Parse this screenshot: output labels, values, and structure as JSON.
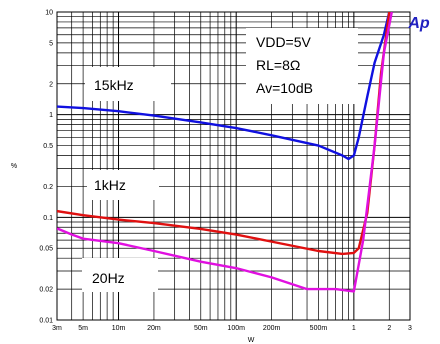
{
  "chart_data": {
    "type": "line",
    "title": "",
    "xlabel": "W",
    "ylabel": "%",
    "x_scale": "log",
    "y_scale": "log",
    "xlim": [
      0.003,
      3
    ],
    "ylim": [
      0.01,
      10
    ],
    "grid": true,
    "x_ticks": [
      {
        "value": 0.003,
        "label": "3m"
      },
      {
        "value": 0.005,
        "label": "5m"
      },
      {
        "value": 0.01,
        "label": "10m"
      },
      {
        "value": 0.02,
        "label": "20m"
      },
      {
        "value": 0.05,
        "label": "50m"
      },
      {
        "value": 0.1,
        "label": "100m"
      },
      {
        "value": 0.2,
        "label": "200m"
      },
      {
        "value": 0.5,
        "label": "500m"
      },
      {
        "value": 1,
        "label": "1"
      },
      {
        "value": 2,
        "label": "2"
      },
      {
        "value": 3,
        "label": "3"
      }
    ],
    "y_ticks": [
      {
        "value": 10,
        "label": "10"
      },
      {
        "value": 5,
        "label": "5"
      },
      {
        "value": 2,
        "label": "2"
      },
      {
        "value": 1,
        "label": "1"
      },
      {
        "value": 0.5,
        "label": "0.5"
      },
      {
        "value": 0.2,
        "label": "0.2"
      },
      {
        "value": 0.1,
        "label": "0.1"
      },
      {
        "value": 0.05,
        "label": "0.05"
      },
      {
        "value": 0.02,
        "label": "0.02"
      },
      {
        "value": 0.01,
        "label": "0.01"
      }
    ],
    "conditions": [
      "VDD=5V",
      "RL=8Ω",
      "Av=10dB"
    ],
    "logo": "Ap",
    "series": [
      {
        "name": "15kHz",
        "color": "#1010e0",
        "points": [
          [
            0.003,
            1.2
          ],
          [
            0.005,
            1.16
          ],
          [
            0.01,
            1.08
          ],
          [
            0.02,
            0.98
          ],
          [
            0.05,
            0.84
          ],
          [
            0.1,
            0.74
          ],
          [
            0.2,
            0.63
          ],
          [
            0.5,
            0.5
          ],
          [
            0.8,
            0.4
          ],
          [
            0.9,
            0.37
          ],
          [
            1.0,
            0.4
          ],
          [
            1.1,
            0.6
          ],
          [
            1.3,
            1.5
          ],
          [
            1.5,
            3.2
          ],
          [
            1.8,
            6.0
          ],
          [
            2.0,
            10
          ]
        ]
      },
      {
        "name": "1kHz",
        "color": "#e01010",
        "points": [
          [
            0.003,
            0.115
          ],
          [
            0.005,
            0.105
          ],
          [
            0.01,
            0.095
          ],
          [
            0.02,
            0.088
          ],
          [
            0.05,
            0.077
          ],
          [
            0.1,
            0.068
          ],
          [
            0.2,
            0.058
          ],
          [
            0.5,
            0.047
          ],
          [
            0.8,
            0.044
          ],
          [
            1.0,
            0.045
          ],
          [
            1.1,
            0.05
          ],
          [
            1.3,
            0.11
          ],
          [
            1.5,
            0.5
          ],
          [
            1.7,
            2.5
          ],
          [
            2.0,
            10
          ]
        ]
      },
      {
        "name": "20Hz",
        "color": "#e010e0",
        "points": [
          [
            0.003,
            0.078
          ],
          [
            0.004,
            0.068
          ],
          [
            0.005,
            0.062
          ],
          [
            0.01,
            0.056
          ],
          [
            0.02,
            0.047
          ],
          [
            0.05,
            0.037
          ],
          [
            0.1,
            0.032
          ],
          [
            0.2,
            0.026
          ],
          [
            0.4,
            0.02
          ],
          [
            0.7,
            0.02
          ],
          [
            1.0,
            0.019
          ],
          [
            1.2,
            0.06
          ],
          [
            1.5,
            0.5
          ],
          [
            1.8,
            4
          ],
          [
            2.1,
            10
          ]
        ]
      }
    ]
  }
}
